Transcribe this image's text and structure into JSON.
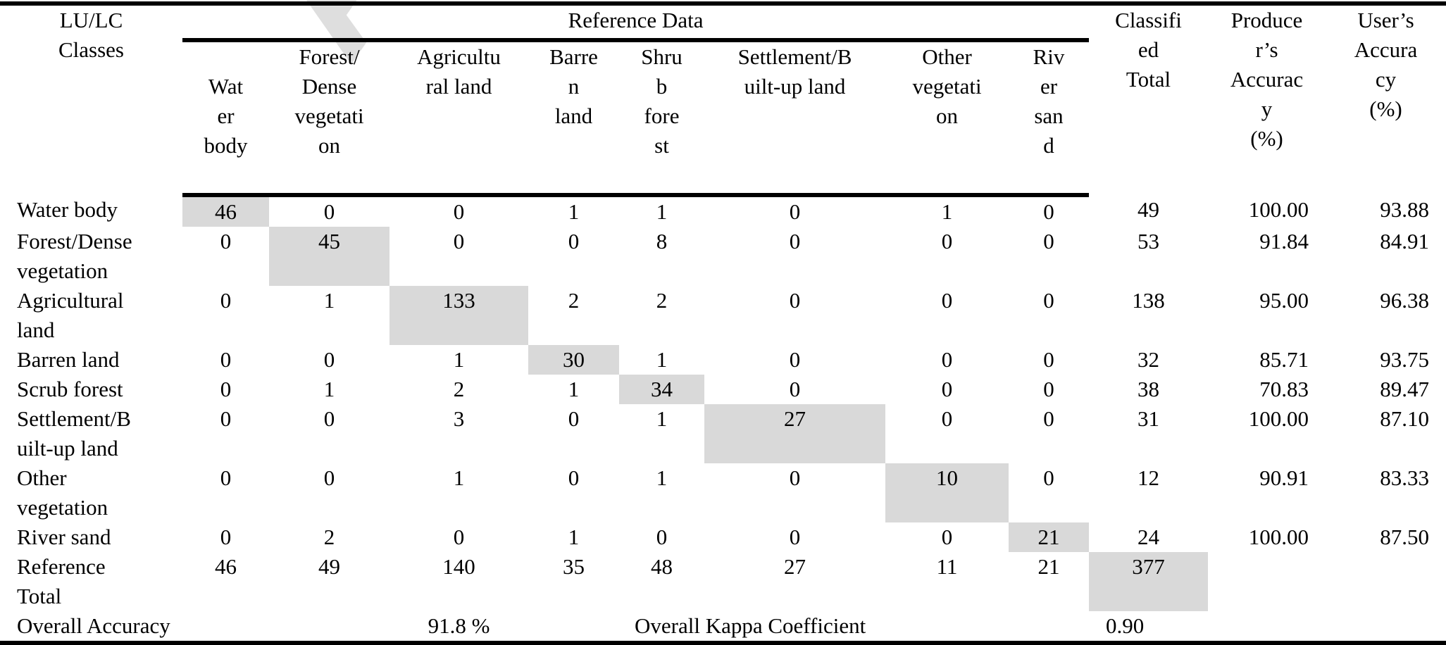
{
  "watermark": "Acce",
  "header": {
    "classes": "LU/LC\nClasses",
    "reference_data": "Reference Data",
    "columns": [
      "Wat\ner\nbody",
      "Forest/\nDense\nvegetati\non",
      "Agricultu\nral land",
      "Barre\nn\nland",
      "Shru\nb\nfore\nst",
      "Settlement/B\nuilt-up land",
      "Other\nvegetati\non",
      "Riv\ner\nsan\nd"
    ],
    "classified_total": "Classifi\ned\nTotal",
    "producers_accuracy": "Produce\nr’s\nAccurac\ny\n(%)",
    "users_accuracy": "User’s\nAccura\ncy\n(%)"
  },
  "rows": [
    {
      "label": "Water body",
      "values": [
        "46",
        "0",
        "0",
        "1",
        "1",
        "0",
        "1",
        "0"
      ],
      "total": "49",
      "producer": "100.00",
      "user": "93.88"
    },
    {
      "label": "Forest/Dense\nvegetation",
      "values": [
        "0",
        "45",
        "0",
        "0",
        "8",
        "0",
        "0",
        "0"
      ],
      "total": "53",
      "producer": "91.84",
      "user": "84.91"
    },
    {
      "label": "Agricultural\nland",
      "values": [
        "0",
        "1",
        "133",
        "2",
        "2",
        "0",
        "0",
        "0"
      ],
      "total": "138",
      "producer": "95.00",
      "user": "96.38"
    },
    {
      "label": "Barren land",
      "values": [
        "0",
        "0",
        "1",
        "30",
        "1",
        "0",
        "0",
        "0"
      ],
      "total": "32",
      "producer": "85.71",
      "user": "93.75"
    },
    {
      "label": "Scrub forest",
      "values": [
        "0",
        "1",
        "2",
        "1",
        "34",
        "0",
        "0",
        "0"
      ],
      "total": "38",
      "producer": "70.83",
      "user": "89.47"
    },
    {
      "label": "Settlement/B\nuilt-up land",
      "values": [
        "0",
        "0",
        "3",
        "0",
        "1",
        "27",
        "0",
        "0"
      ],
      "total": "31",
      "producer": "100.00",
      "user": "87.10"
    },
    {
      "label": "Other\nvegetation",
      "values": [
        "0",
        "0",
        "1",
        "0",
        "1",
        "0",
        "10",
        "0"
      ],
      "total": "12",
      "producer": "90.91",
      "user": "83.33"
    },
    {
      "label": "River sand",
      "values": [
        "0",
        "2",
        "0",
        "1",
        "0",
        "0",
        "0",
        "21"
      ],
      "total": "24",
      "producer": "100.00",
      "user": "87.50"
    }
  ],
  "reference_total": {
    "label": "Reference\nTotal",
    "values": [
      "46",
      "49",
      "140",
      "35",
      "48",
      "27",
      "11",
      "21"
    ],
    "total": "377"
  },
  "summary": {
    "overall_accuracy_label": "Overall Accuracy",
    "overall_accuracy_value": "91.8 %",
    "kappa_label": "Overall Kappa Coefficient",
    "kappa_value": "0.90"
  }
}
